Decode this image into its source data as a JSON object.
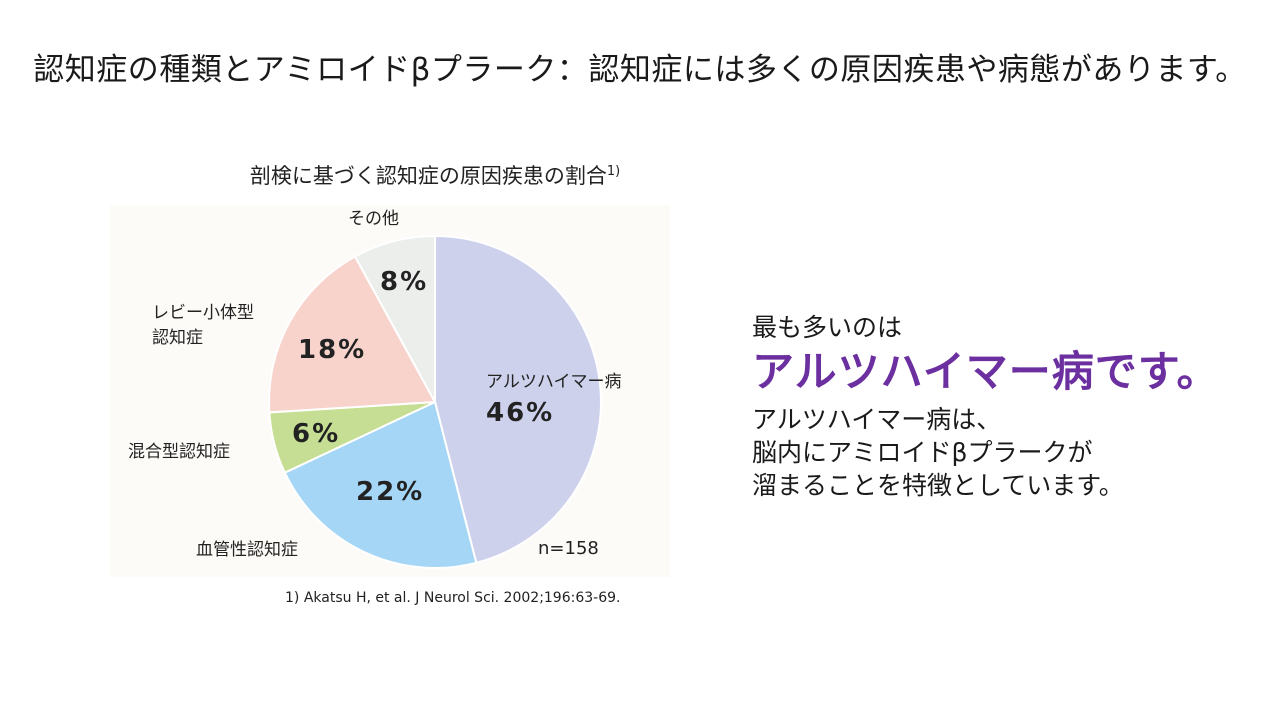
{
  "title": "認知症の種類とアミロイドβプラーク：認知症には多くの原因疾患や病態があります。",
  "chart_caption": "剖検に基づく認知症の原因疾患の割合",
  "chart_caption_ref": "1)",
  "chart_data": {
    "type": "pie",
    "title": "剖検に基づく認知症の原因疾患の割合",
    "n_label": "n=158",
    "slices": [
      {
        "label": "アルツハイマー病",
        "value": 46,
        "display": "46%",
        "color": "#cdd1ec"
      },
      {
        "label": "血管性認知症",
        "value": 22,
        "display": "22%",
        "color": "#a5d6f5"
      },
      {
        "label": "混合型認知症",
        "value": 6,
        "display": "6%",
        "color": "#c6de93"
      },
      {
        "label": "レビー小体型認知症",
        "label_lines": [
          "レビー小体型",
          "認知症"
        ],
        "value": 18,
        "display": "18%",
        "color": "#f8d3cc"
      },
      {
        "label": "その他",
        "value": 8,
        "display": "8%",
        "color": "#eceeec"
      }
    ]
  },
  "reference": "1) Akatsu H, et al. J Neurol Sci. 2002;196:63-69.",
  "message": {
    "lead": "最も多いのは",
    "highlight": "アルツハイマー病です。",
    "body_lines": [
      "アルツハイマー病は、",
      "脳内にアミロイドβプラークが",
      "溜まることを特徴としています。"
    ]
  },
  "colors": {
    "highlight": "#6b2fa0"
  }
}
